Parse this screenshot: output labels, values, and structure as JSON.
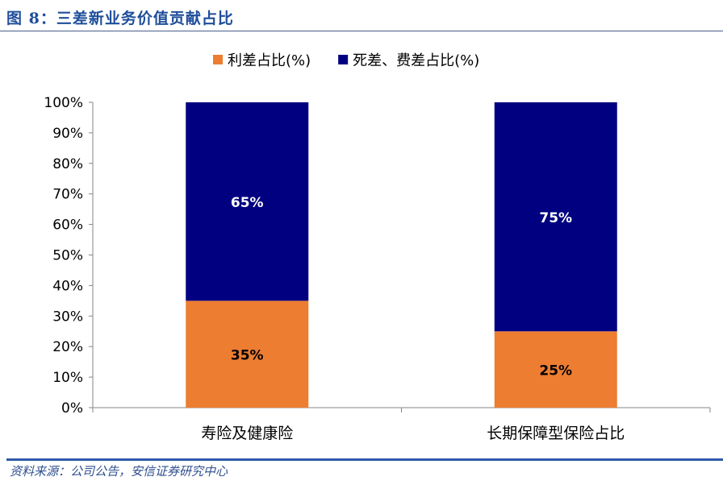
{
  "title": "图 8：三差新业务价值贡献占比",
  "source": "资料来源：公司公告，安信证券研究中心",
  "chart_data": {
    "type": "bar",
    "stacked": true,
    "categories": [
      "寿险及健康险",
      "长期保障型保险占比"
    ],
    "series": [
      {
        "name": "利差占比(%)",
        "values": [
          35,
          25
        ],
        "color": "#ed7d31"
      },
      {
        "name": "死差、费差占比(%)",
        "values": [
          65,
          75
        ],
        "color": "#000080"
      }
    ],
    "data_labels": [
      [
        "35%",
        "25%"
      ],
      [
        "65%",
        "75%"
      ]
    ],
    "ylim": [
      0,
      100
    ],
    "yticks": [
      "0%",
      "10%",
      "20%",
      "30%",
      "40%",
      "50%",
      "60%",
      "70%",
      "80%",
      "90%",
      "100%"
    ],
    "legend": "top",
    "grid": false
  }
}
